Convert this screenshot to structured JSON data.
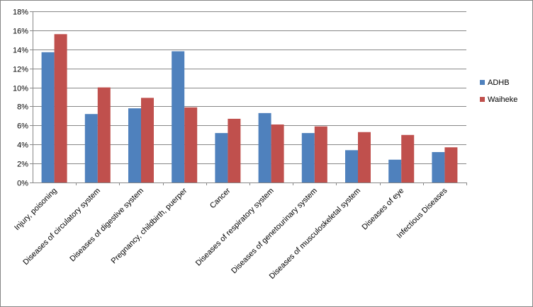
{
  "chart_data": {
    "type": "bar",
    "title": "",
    "xlabel": "",
    "ylabel": "",
    "ylim": [
      0,
      18
    ],
    "ytick_step": 2,
    "ytick_format": "percent",
    "grid": true,
    "legend_position": "right",
    "categories": [
      "Injury, poisoning",
      "Diseases of circulatory system",
      "Diseases of digestive system",
      "Pregnancy, childbirth, puerper",
      "Cancer",
      "Diseases of respiratory system",
      "Diseases of genetourinary system",
      "Diseases of musculoskeletal system",
      "Diseases of eye",
      "Infectious Diseases"
    ],
    "series": [
      {
        "name": "ADHB",
        "color": "#4F81BD",
        "values": [
          13.7,
          7.2,
          7.8,
          13.8,
          5.2,
          7.3,
          5.2,
          3.4,
          2.4,
          3.2
        ]
      },
      {
        "name": "Waiheke",
        "color": "#C0504D",
        "values": [
          15.6,
          10.0,
          8.9,
          7.9,
          6.7,
          6.1,
          5.9,
          5.3,
          5.0,
          3.7
        ]
      }
    ]
  }
}
